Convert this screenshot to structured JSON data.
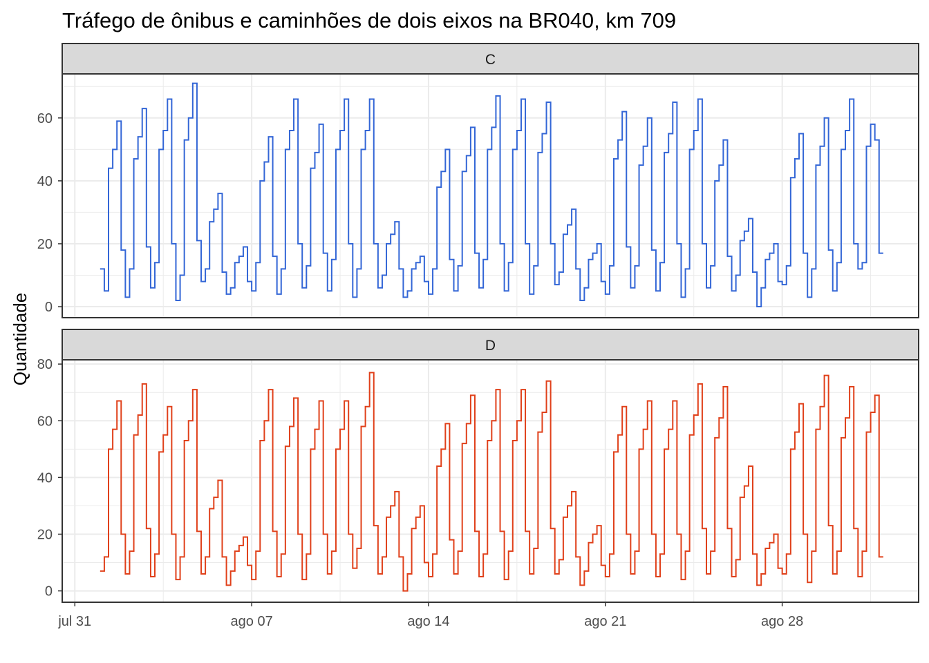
{
  "chart_data": {
    "type": "line",
    "title": "Tráfego de ônibus e caminhões de dois eixos na BR040, km 709",
    "xlabel": "",
    "ylabel": "Quantidade",
    "x_unit": "days since jul 31",
    "x_ticks": [
      0,
      7,
      14,
      21,
      28
    ],
    "x_tick_labels": [
      "jul 31",
      "ago 07",
      "ago 14",
      "ago 21",
      "ago 28"
    ],
    "xlim": [
      -0.5,
      33.4
    ],
    "x_start": 1.0,
    "x_step_days": 0.16667,
    "grid": true,
    "panels": [
      {
        "strip": "C",
        "color": "#3366D6",
        "ylim": [
          -3.5,
          74
        ],
        "y_ticks": [
          0,
          20,
          40,
          60
        ],
        "y_tick_labels": [
          "0",
          "20",
          "40",
          "60"
        ],
        "values": [
          12,
          5,
          44,
          50,
          59,
          18,
          3,
          12,
          47,
          54,
          63,
          19,
          6,
          14,
          50,
          56,
          66,
          20,
          2,
          10,
          53,
          60,
          71,
          21,
          8,
          12,
          27,
          31,
          36,
          11,
          4,
          6,
          14,
          16,
          19,
          8,
          5,
          14,
          40,
          46,
          54,
          16,
          4,
          12,
          50,
          56,
          66,
          20,
          6,
          13,
          44,
          49,
          58,
          17,
          5,
          15,
          50,
          56,
          66,
          20,
          3,
          12,
          50,
          56,
          66,
          20,
          6,
          10,
          20,
          23,
          27,
          12,
          3,
          5,
          12,
          14,
          16,
          8,
          4,
          12,
          38,
          43,
          50,
          15,
          5,
          13,
          43,
          48,
          57,
          17,
          6,
          15,
          50,
          57,
          67,
          20,
          5,
          14,
          50,
          56,
          66,
          20,
          4,
          13,
          49,
          55,
          65,
          20,
          7,
          11,
          23,
          26,
          31,
          12,
          2,
          6,
          15,
          17,
          20,
          8,
          4,
          13,
          47,
          53,
          62,
          19,
          6,
          13,
          45,
          51,
          60,
          18,
          5,
          14,
          49,
          55,
          65,
          20,
          3,
          12,
          50,
          56,
          66,
          20,
          6,
          13,
          40,
          45,
          53,
          16,
          5,
          10,
          21,
          24,
          28,
          11,
          0,
          6,
          15,
          17,
          20,
          8,
          7,
          13,
          41,
          47,
          55,
          17,
          3,
          12,
          45,
          51,
          60,
          18,
          5,
          14,
          50,
          56,
          66,
          20,
          12,
          14,
          51,
          58,
          53,
          17
        ]
      },
      {
        "strip": "D",
        "color": "#E0401A",
        "ylim": [
          -4,
          81.5
        ],
        "y_ticks": [
          0,
          20,
          40,
          60,
          80
        ],
        "y_tick_labels": [
          "0",
          "20",
          "40",
          "60",
          "80"
        ],
        "values": [
          7,
          12,
          50,
          57,
          67,
          20,
          6,
          14,
          55,
          62,
          73,
          22,
          5,
          13,
          49,
          55,
          65,
          20,
          4,
          12,
          53,
          60,
          71,
          21,
          6,
          12,
          29,
          33,
          39,
          12,
          2,
          7,
          14,
          16,
          19,
          9,
          4,
          14,
          53,
          60,
          71,
          21,
          5,
          13,
          51,
          58,
          68,
          20,
          4,
          13,
          50,
          57,
          67,
          20,
          6,
          14,
          50,
          57,
          67,
          20,
          8,
          15,
          58,
          65,
          77,
          23,
          6,
          12,
          26,
          30,
          35,
          12,
          0,
          6,
          22,
          26,
          30,
          10,
          5,
          13,
          44,
          50,
          59,
          18,
          6,
          14,
          52,
          59,
          69,
          21,
          5,
          13,
          53,
          60,
          71,
          21,
          4,
          14,
          53,
          60,
          71,
          21,
          6,
          15,
          56,
          63,
          74,
          22,
          6,
          11,
          26,
          30,
          35,
          12,
          2,
          7,
          17,
          20,
          23,
          9,
          5,
          13,
          49,
          55,
          65,
          20,
          6,
          14,
          50,
          57,
          67,
          20,
          5,
          13,
          50,
          57,
          67,
          20,
          4,
          14,
          55,
          62,
          73,
          22,
          6,
          14,
          54,
          61,
          72,
          22,
          5,
          11,
          33,
          37,
          44,
          13,
          2,
          6,
          15,
          17,
          20,
          8,
          6,
          13,
          50,
          56,
          66,
          20,
          3,
          14,
          57,
          65,
          76,
          23,
          6,
          14,
          54,
          61,
          72,
          22,
          5,
          14,
          56,
          63,
          69,
          12
        ]
      }
    ]
  }
}
